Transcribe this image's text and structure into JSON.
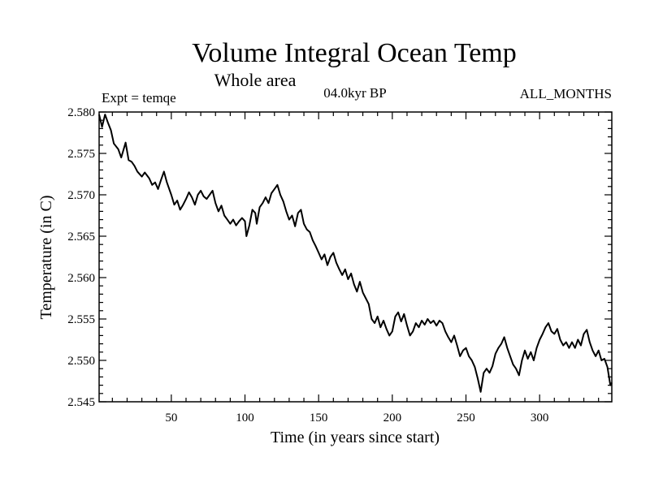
{
  "chart_data": {
    "type": "line",
    "title": "Volume Integral Ocean Temp",
    "subtitle": "Whole area",
    "annotations": {
      "left": "Expt = temqe",
      "center": "04.0kyr BP",
      "right": "ALL_MONTHS"
    },
    "xlabel": "Time (in years since start)",
    "ylabel": "Temperature (in C)",
    "xlim": [
      1,
      349
    ],
    "ylim": [
      2.545,
      2.58
    ],
    "x_ticks": [
      50,
      100,
      150,
      200,
      250,
      300
    ],
    "x_tick_labels": [
      "50",
      "100",
      "150",
      "200",
      "250",
      "300"
    ],
    "y_ticks": [
      2.545,
      2.55,
      2.555,
      2.56,
      2.565,
      2.57,
      2.575,
      2.58
    ],
    "y_tick_labels": [
      "2.545",
      "2.550",
      "2.555",
      "2.560",
      "2.565",
      "2.570",
      "2.575",
      "2.580"
    ],
    "grid": false,
    "series": [
      {
        "name": "Volume Integral Ocean Temp",
        "color": "#000000",
        "points": [
          [
            1,
            2.5797
          ],
          [
            3,
            2.5782
          ],
          [
            5,
            2.5797
          ],
          [
            7,
            2.5787
          ],
          [
            9,
            2.5778
          ],
          [
            11,
            2.5762
          ],
          [
            14,
            2.5755
          ],
          [
            16,
            2.5745
          ],
          [
            19,
            2.5763
          ],
          [
            21,
            2.5742
          ],
          [
            23,
            2.574
          ],
          [
            25,
            2.5735
          ],
          [
            27,
            2.5728
          ],
          [
            30,
            2.5722
          ],
          [
            32,
            2.5727
          ],
          [
            35,
            2.572
          ],
          [
            37,
            2.5712
          ],
          [
            39,
            2.5715
          ],
          [
            41,
            2.5707
          ],
          [
            43,
            2.5718
          ],
          [
            45,
            2.5728
          ],
          [
            47,
            2.5715
          ],
          [
            50,
            2.57
          ],
          [
            52,
            2.5688
          ],
          [
            54,
            2.5693
          ],
          [
            56,
            2.5682
          ],
          [
            58,
            2.5688
          ],
          [
            60,
            2.5695
          ],
          [
            62,
            2.5703
          ],
          [
            64,
            2.5697
          ],
          [
            66,
            2.5688
          ],
          [
            68,
            2.57
          ],
          [
            70,
            2.5705
          ],
          [
            72,
            2.5698
          ],
          [
            74,
            2.5695
          ],
          [
            76,
            2.57
          ],
          [
            78,
            2.5705
          ],
          [
            80,
            2.569
          ],
          [
            82,
            2.568
          ],
          [
            84,
            2.5687
          ],
          [
            86,
            2.5675
          ],
          [
            88,
            2.567
          ],
          [
            90,
            2.5665
          ],
          [
            92,
            2.567
          ],
          [
            94,
            2.5663
          ],
          [
            96,
            2.5668
          ],
          [
            98,
            2.5672
          ],
          [
            100,
            2.5668
          ],
          [
            101,
            2.565
          ],
          [
            103,
            2.5663
          ],
          [
            105,
            2.5682
          ],
          [
            107,
            2.5678
          ],
          [
            108,
            2.5665
          ],
          [
            110,
            2.5685
          ],
          [
            112,
            2.569
          ],
          [
            114,
            2.5697
          ],
          [
            116,
            2.569
          ],
          [
            118,
            2.5702
          ],
          [
            120,
            2.5707
          ],
          [
            122,
            2.5712
          ],
          [
            124,
            2.57
          ],
          [
            126,
            2.5692
          ],
          [
            128,
            2.568
          ],
          [
            130,
            2.567
          ],
          [
            132,
            2.5675
          ],
          [
            134,
            2.5662
          ],
          [
            136,
            2.5678
          ],
          [
            138,
            2.5682
          ],
          [
            140,
            2.5665
          ],
          [
            142,
            2.5658
          ],
          [
            144,
            2.5655
          ],
          [
            146,
            2.5645
          ],
          [
            148,
            2.5638
          ],
          [
            150,
            2.563
          ],
          [
            152,
            2.5622
          ],
          [
            154,
            2.5628
          ],
          [
            156,
            2.5615
          ],
          [
            158,
            2.5625
          ],
          [
            160,
            2.563
          ],
          [
            162,
            2.5618
          ],
          [
            164,
            2.561
          ],
          [
            166,
            2.5603
          ],
          [
            168,
            2.561
          ],
          [
            170,
            2.5598
          ],
          [
            172,
            2.5605
          ],
          [
            174,
            2.5592
          ],
          [
            176,
            2.5583
          ],
          [
            178,
            2.5595
          ],
          [
            180,
            2.5582
          ],
          [
            182,
            2.5575
          ],
          [
            184,
            2.5568
          ],
          [
            186,
            2.555
          ],
          [
            188,
            2.5545
          ],
          [
            190,
            2.5553
          ],
          [
            192,
            2.554
          ],
          [
            194,
            2.5548
          ],
          [
            196,
            2.5538
          ],
          [
            198,
            2.553
          ],
          [
            200,
            2.5535
          ],
          [
            202,
            2.5553
          ],
          [
            204,
            2.5558
          ],
          [
            206,
            2.5547
          ],
          [
            208,
            2.5556
          ],
          [
            210,
            2.5542
          ],
          [
            212,
            2.553
          ],
          [
            214,
            2.5535
          ],
          [
            216,
            2.5545
          ],
          [
            218,
            2.554
          ],
          [
            220,
            2.5548
          ],
          [
            222,
            2.5543
          ],
          [
            224,
            2.555
          ],
          [
            226,
            2.5545
          ],
          [
            228,
            2.5548
          ],
          [
            230,
            2.5542
          ],
          [
            232,
            2.5548
          ],
          [
            234,
            2.5545
          ],
          [
            236,
            2.5535
          ],
          [
            238,
            2.5528
          ],
          [
            240,
            2.5522
          ],
          [
            242,
            2.553
          ],
          [
            244,
            2.5518
          ],
          [
            246,
            2.5505
          ],
          [
            248,
            2.5512
          ],
          [
            250,
            2.5515
          ],
          [
            252,
            2.5505
          ],
          [
            254,
            2.55
          ],
          [
            256,
            2.5492
          ],
          [
            258,
            2.5478
          ],
          [
            260,
            2.5462
          ],
          [
            262,
            2.5485
          ],
          [
            264,
            2.549
          ],
          [
            266,
            2.5485
          ],
          [
            268,
            2.5493
          ],
          [
            270,
            2.5508
          ],
          [
            272,
            2.5515
          ],
          [
            274,
            2.552
          ],
          [
            276,
            2.5528
          ],
          [
            278,
            2.5515
          ],
          [
            280,
            2.5505
          ],
          [
            282,
            2.5495
          ],
          [
            284,
            2.549
          ],
          [
            286,
            2.5482
          ],
          [
            288,
            2.55
          ],
          [
            290,
            2.5512
          ],
          [
            292,
            2.5502
          ],
          [
            294,
            2.551
          ],
          [
            296,
            2.55
          ],
          [
            298,
            2.5515
          ],
          [
            300,
            2.5525
          ],
          [
            302,
            2.5532
          ],
          [
            304,
            2.554
          ],
          [
            306,
            2.5545
          ],
          [
            308,
            2.5535
          ],
          [
            310,
            2.5532
          ],
          [
            312,
            2.5538
          ],
          [
            314,
            2.5525
          ],
          [
            316,
            2.5518
          ],
          [
            318,
            2.5522
          ],
          [
            320,
            2.5515
          ],
          [
            322,
            2.5522
          ],
          [
            324,
            2.5515
          ],
          [
            326,
            2.5525
          ],
          [
            328,
            2.5518
          ],
          [
            330,
            2.5532
          ],
          [
            332,
            2.5537
          ],
          [
            334,
            2.5522
          ],
          [
            336,
            2.5512
          ],
          [
            338,
            2.5505
          ],
          [
            340,
            2.5512
          ],
          [
            342,
            2.55
          ],
          [
            344,
            2.5502
          ],
          [
            346,
            2.5492
          ],
          [
            348,
            2.547
          ],
          [
            349,
            2.5473
          ]
        ]
      }
    ]
  }
}
